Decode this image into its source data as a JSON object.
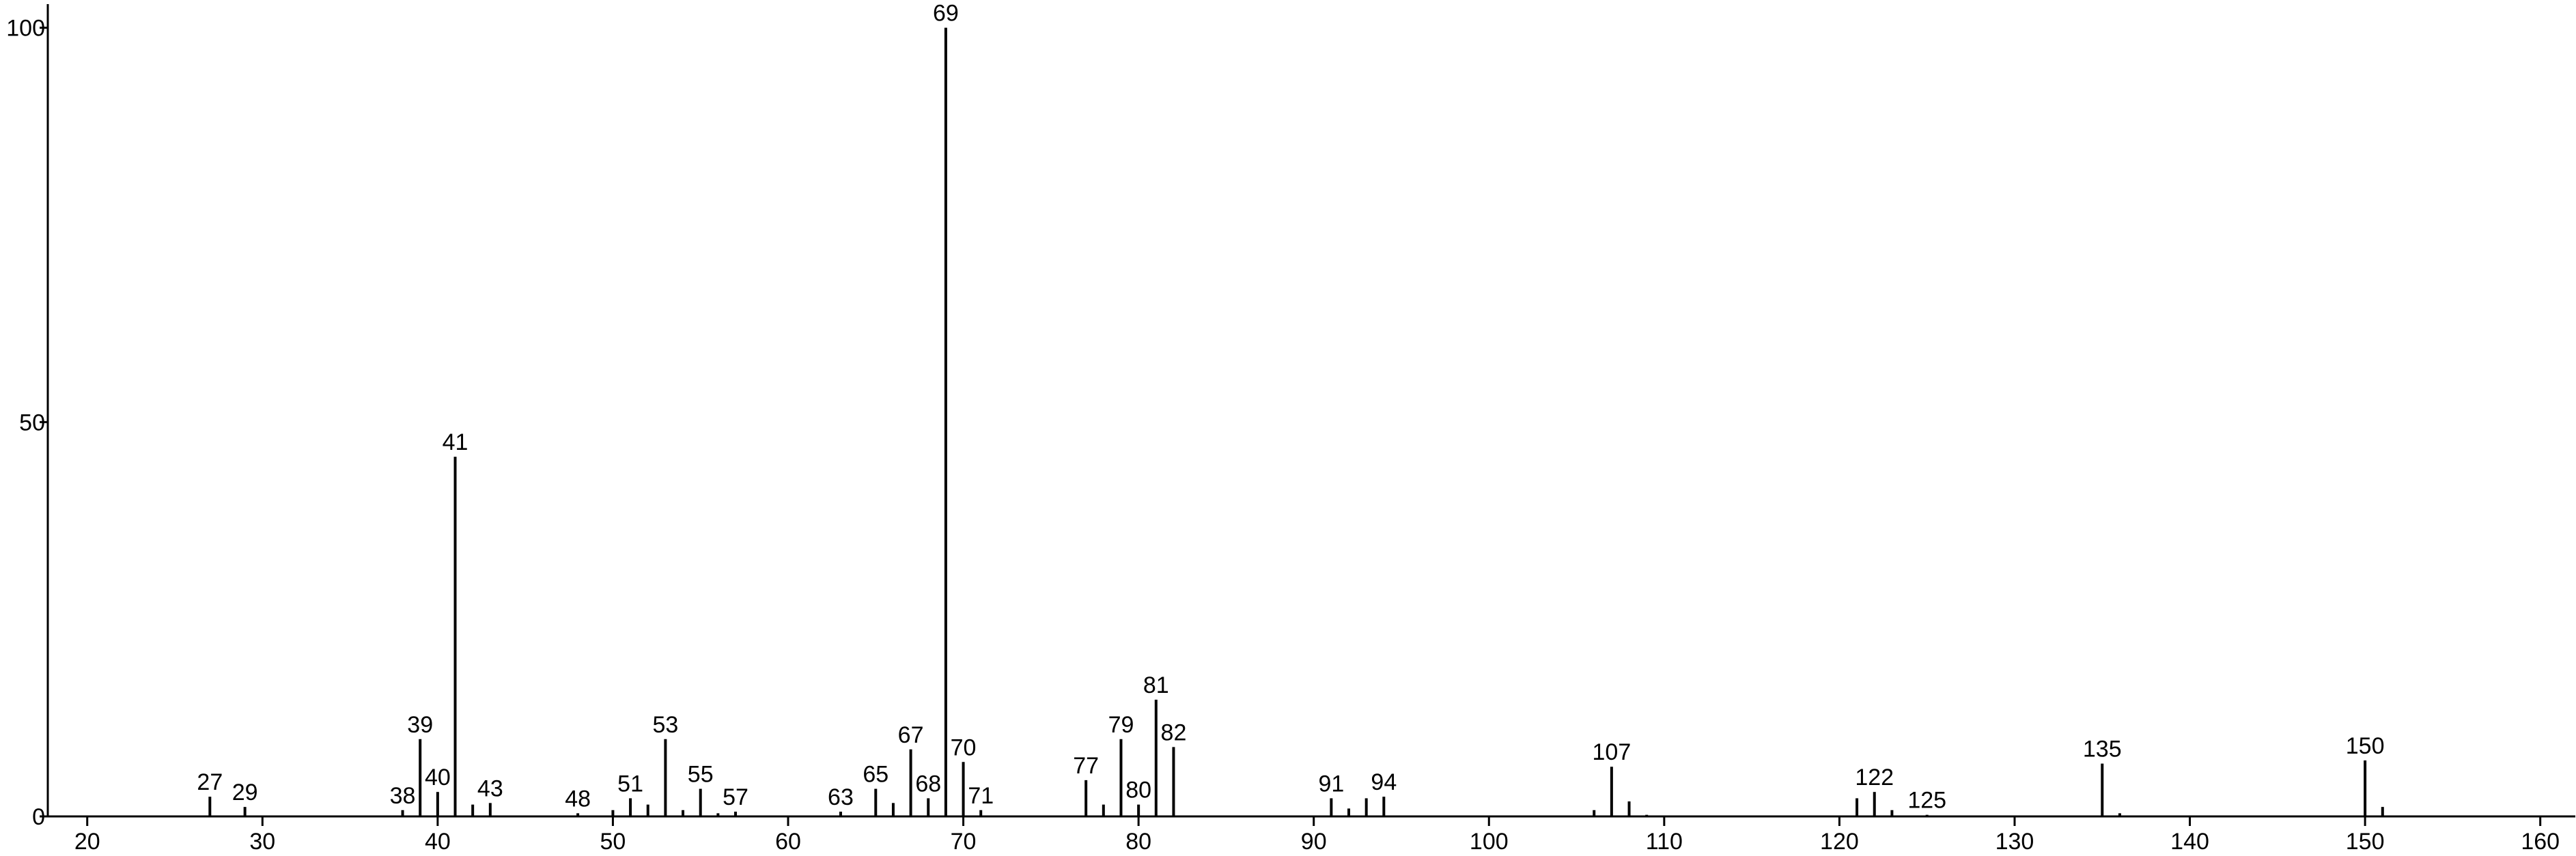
{
  "chart_data": {
    "type": "stem",
    "x": [
      27,
      29,
      38,
      39,
      40,
      41,
      42,
      43,
      48,
      50,
      51,
      52,
      53,
      54,
      55,
      56,
      57,
      63,
      65,
      66,
      67,
      68,
      69,
      70,
      71,
      77,
      78,
      79,
      80,
      81,
      82,
      91,
      92,
      93,
      94,
      106,
      107,
      108,
      109,
      121,
      122,
      123,
      125,
      135,
      136,
      150,
      151
    ],
    "values": [
      2.5,
      1.2,
      0.8,
      9.8,
      3.1,
      45.6,
      1.5,
      1.7,
      0.4,
      0.8,
      2.3,
      1.5,
      9.8,
      0.8,
      3.5,
      0.4,
      0.6,
      0.6,
      3.5,
      1.7,
      8.5,
      2.3,
      100,
      6.9,
      0.8,
      4.6,
      1.5,
      9.8,
      1.5,
      14.8,
      8.8,
      2.3,
      1.0,
      2.3,
      2.5,
      0.8,
      6.3,
      1.9,
      0.2,
      2.3,
      3.1,
      0.8,
      0.2,
      6.7,
      0.4,
      7.1,
      1.2
    ],
    "point_labels": [
      "27",
      "29",
      "38",
      "39",
      "40",
      "41",
      null,
      "43",
      "48",
      null,
      "51",
      null,
      "53",
      null,
      "55",
      null,
      "57",
      "63",
      "65",
      null,
      "67",
      "68",
      "69",
      "70",
      "71",
      "77",
      null,
      "79",
      "80",
      "81",
      "82",
      "91",
      null,
      null,
      "94",
      null,
      "107",
      null,
      null,
      null,
      "122",
      null,
      "125",
      "135",
      null,
      "150",
      null
    ],
    "color": "#000000",
    "xlim": [
      17.75,
      162
    ],
    "xticks": [
      20,
      30,
      40,
      50,
      60,
      70,
      80,
      90,
      100,
      110,
      120,
      130,
      140,
      150,
      160
    ],
    "ylim": [
      0,
      103
    ],
    "yticks": [
      0,
      50,
      100
    ]
  }
}
